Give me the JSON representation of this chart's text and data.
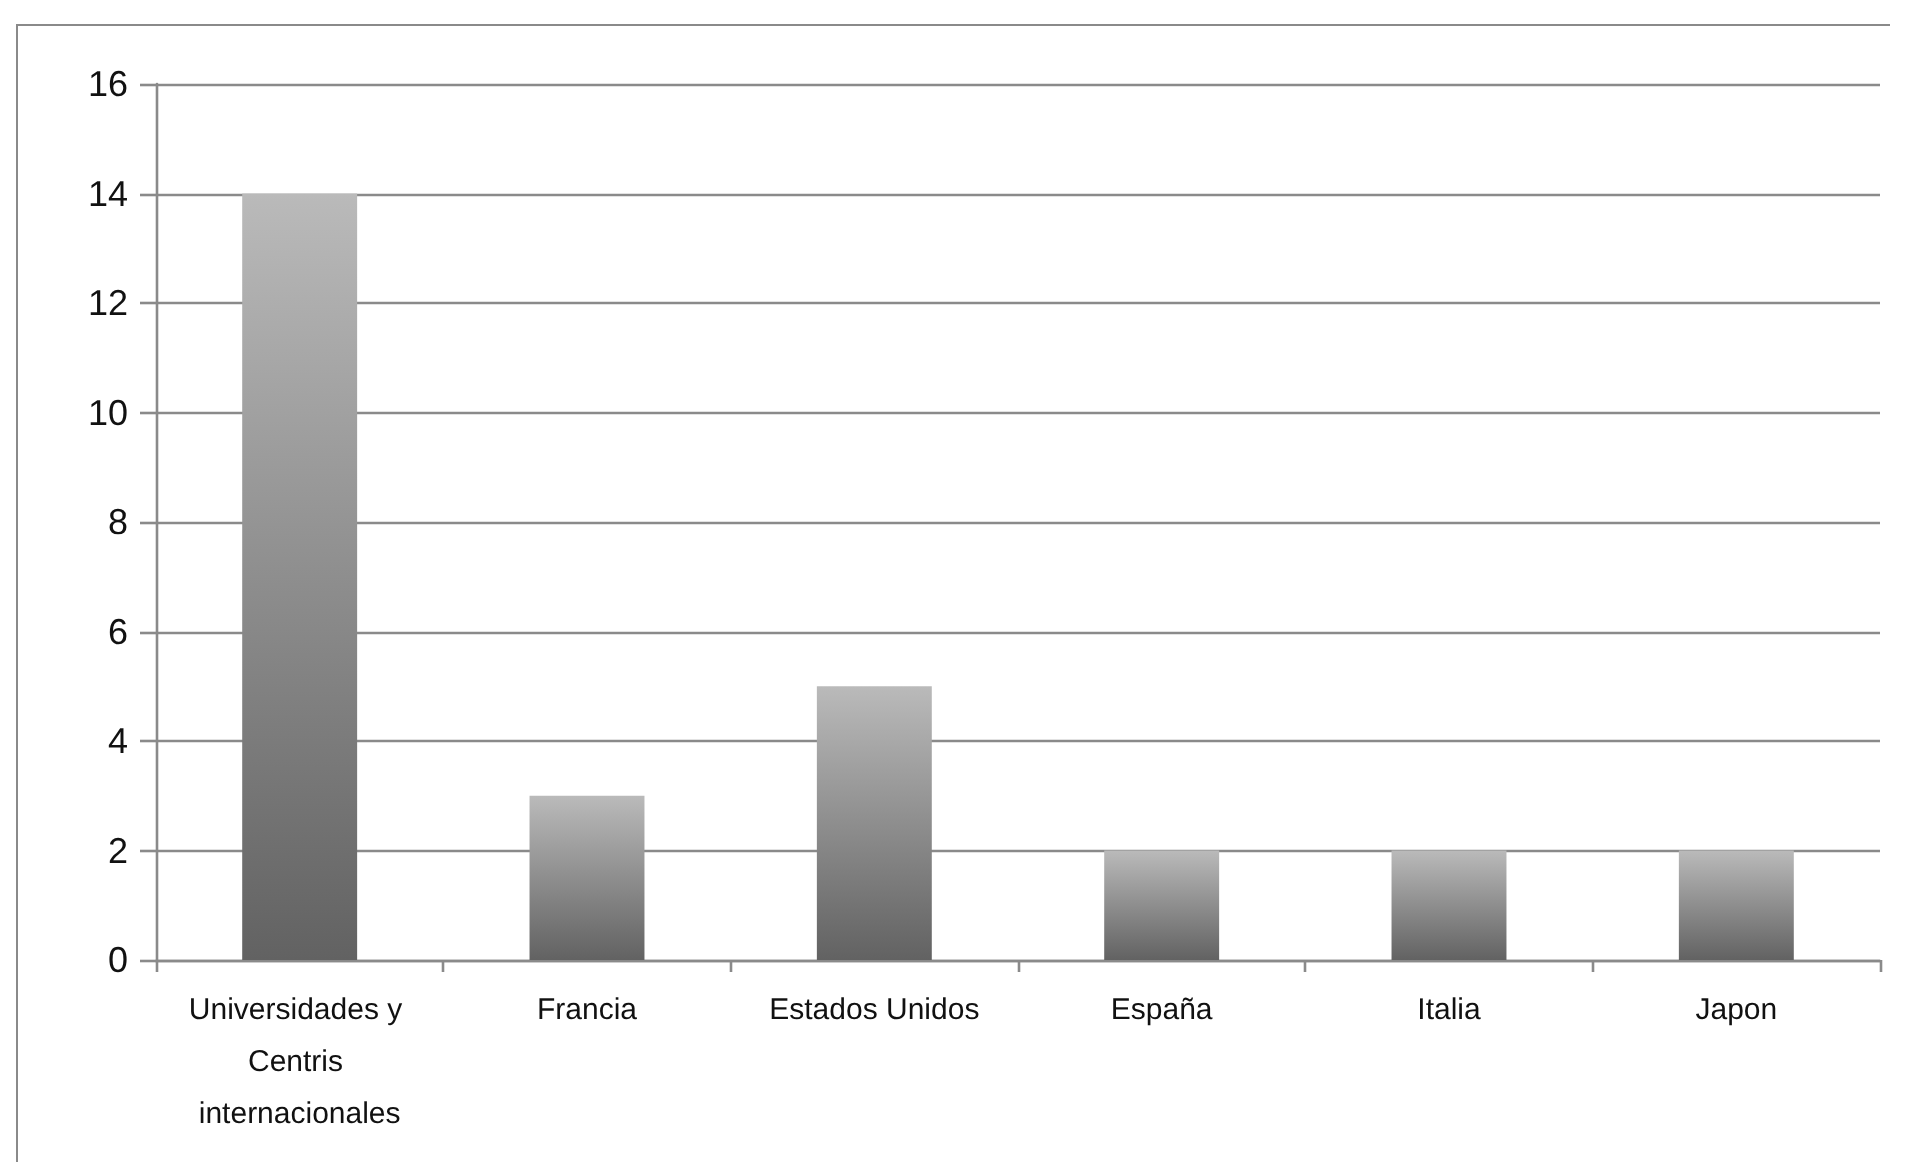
{
  "chart_data": {
    "type": "bar",
    "categories": [
      "Universidades y Centris internacionales",
      "Francia",
      "Estados Unidos",
      "España",
      "Italia",
      "Japon"
    ],
    "values": [
      14,
      3,
      5,
      2,
      2,
      2
    ],
    "color": "#909090",
    "ylim": [
      0,
      16
    ],
    "yticks": [
      0,
      2,
      4,
      6,
      8,
      10,
      12,
      14,
      16
    ],
    "grid": "y"
  }
}
